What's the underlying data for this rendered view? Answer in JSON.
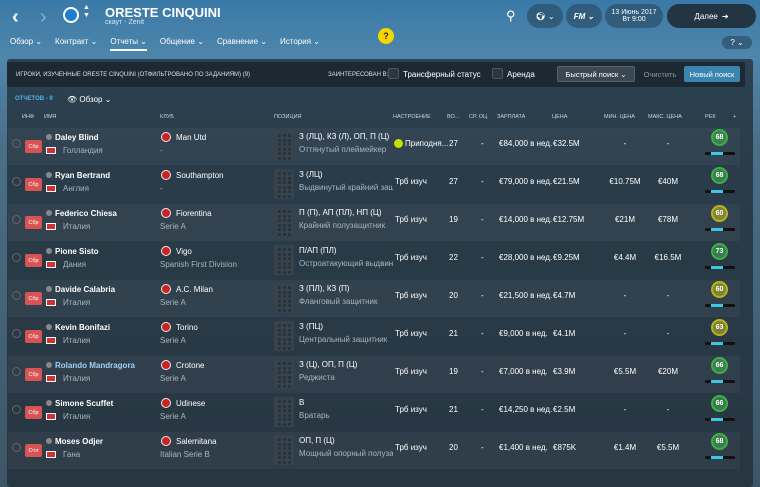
{
  "header": {
    "title": "ORESTE CINQUINI",
    "subtitle": "скаут - Zenit",
    "date": "13 Июнь 2017",
    "time": "Вт 9:00",
    "next": "Далее",
    "fm": "FM"
  },
  "nav": [
    "Обзор",
    "Контракт",
    "Отчеты",
    "Общение",
    "Сравнение",
    "История"
  ],
  "nav_active": 2,
  "filter": {
    "title": "ИГРОКИ, ИЗУЧЕННЫЕ ORESTE CINQUINI (ОТФИЛЬТРОВАНО ПО ЗАДАНИЯМ) (9)",
    "interested": "ЗАИНТЕРЕСОВАН В:",
    "transfer": "Трансферный статус",
    "loan": "Аренда",
    "quick": "Быстрый поиск",
    "clear": "Очистить",
    "new": "Новый поиск"
  },
  "count": "ОТЧЕТОВ - 9",
  "view": "Обзор",
  "columns": [
    "ИНФ",
    "ИМЯ",
    "КЛУБ",
    "ПОЗИЦИЯ",
    "НАСТРОЕНИЕ",
    "ВО...",
    "СР. ОЦ.",
    "ЗАРПЛАТА",
    "ЦЕНА",
    "МИН. ЦЕНА",
    "МАКС. ЦЕНА",
    "РЕК",
    "+"
  ],
  "rows": [
    {
      "badge": "Сбр",
      "name": "Daley Blind",
      "country": "Голландия",
      "club": "Man Utd",
      "league": "-",
      "pos": "З (ЛЦ), КЗ (Л), ОП, П (Ц)",
      "role": "Оттянутый плеймейкер",
      "mood": "Приподня...",
      "age": "27",
      "avg": "-",
      "wage": "€84,000 в нед.",
      "price": "€32.5M",
      "min": "-",
      "max": "-",
      "rec": "68",
      "rc": "#3fae49"
    },
    {
      "badge": "Сбр",
      "name": "Ryan Bertrand",
      "country": "Англия",
      "club": "Southampton",
      "league": "-",
      "pos": "З (ЛЦ)",
      "role": "Выдвинутый крайний защ",
      "mood": "Трб изуч",
      "age": "27",
      "avg": "-",
      "wage": "€79,000 в нед.",
      "price": "€21.5M",
      "min": "€10.75M",
      "max": "€40M",
      "rec": "68",
      "rc": "#3fae49"
    },
    {
      "badge": "Сбр",
      "name": "Federico Chiesa",
      "country": "Италия",
      "club": "Fiorentina",
      "league": "Serie A",
      "pos": "П (П), АП (ПЛ), НП (Ц)",
      "role": "Крайний полузащитник",
      "mood": "Трб изуч",
      "age": "19",
      "avg": "-",
      "wage": "€14,000 в нед.",
      "price": "€12.75M",
      "min": "€21M",
      "max": "€78M",
      "rec": "60",
      "rc": "#b8b21e"
    },
    {
      "badge": "Сбр",
      "name": "Pione Sisto",
      "country": "Дания",
      "club": "Vigo",
      "league": "Spanish First Division",
      "pos": "П/АП (ПЛ)",
      "role": "Остроатакующий выдвину",
      "mood": "Трб изуч",
      "age": "22",
      "avg": "-",
      "wage": "€28,000 в нед.",
      "price": "€9.25M",
      "min": "€4.4M",
      "max": "€16.5M",
      "rec": "73",
      "rc": "#3fae49"
    },
    {
      "badge": "Сбр",
      "name": "Davide Calabria",
      "country": "Италия",
      "club": "A.C. Milan",
      "league": "Serie A",
      "pos": "З (ПЛ), КЗ (П)",
      "role": "Фланговый защитник",
      "mood": "Трб изуч",
      "age": "20",
      "avg": "-",
      "wage": "€21,500 в нед.",
      "price": "€4.7M",
      "min": "-",
      "max": "-",
      "rec": "60",
      "rc": "#b8b21e"
    },
    {
      "badge": "Сбр",
      "name": "Kevin Bonifazi",
      "country": "Италия",
      "club": "Torino",
      "league": "Serie A",
      "pos": "З (ПЦ)",
      "role": "Центральный защитник",
      "mood": "Трб изуч",
      "age": "21",
      "avg": "-",
      "wage": "€9,000 в нед.",
      "price": "€4.1M",
      "min": "-",
      "max": "-",
      "rec": "63",
      "rc": "#b8b21e"
    },
    {
      "badge": "Сбр",
      "name": "Rolando Mandragora",
      "country": "Италия",
      "club": "Crotone",
      "league": "Serie A",
      "pos": "З (Ц), ОП, П (Ц)",
      "role": "Реджиста",
      "mood": "Трб изуч",
      "age": "19",
      "avg": "-",
      "wage": "€7,000 в нед.",
      "price": "€3.9M",
      "min": "€5.5M",
      "max": "€20M",
      "rec": "66",
      "rc": "#3fae49"
    },
    {
      "badge": "Сбр",
      "name": "Simone Scuffet",
      "country": "Италия",
      "club": "Udinese",
      "league": "Serie A",
      "pos": "В",
      "role": "Вратарь",
      "mood": "Трб изуч",
      "age": "21",
      "avg": "-",
      "wage": "€14,250 в нед.",
      "price": "€2.5M",
      "min": "-",
      "max": "-",
      "rec": "66",
      "rc": "#3fae49"
    },
    {
      "badge": "Отл",
      "name": "Moses Odjer",
      "country": "Гана",
      "club": "Salernitana",
      "league": "Italian Serie B",
      "pos": "ОП, П (Ц)",
      "role": "Мощный опорный полузащ",
      "mood": "Трб изуч",
      "age": "20",
      "avg": "-",
      "wage": "€1,400 в нед.",
      "price": "€875K",
      "min": "€1.4M",
      "max": "€5.5M",
      "rec": "68",
      "rc": "#3fae49"
    }
  ]
}
